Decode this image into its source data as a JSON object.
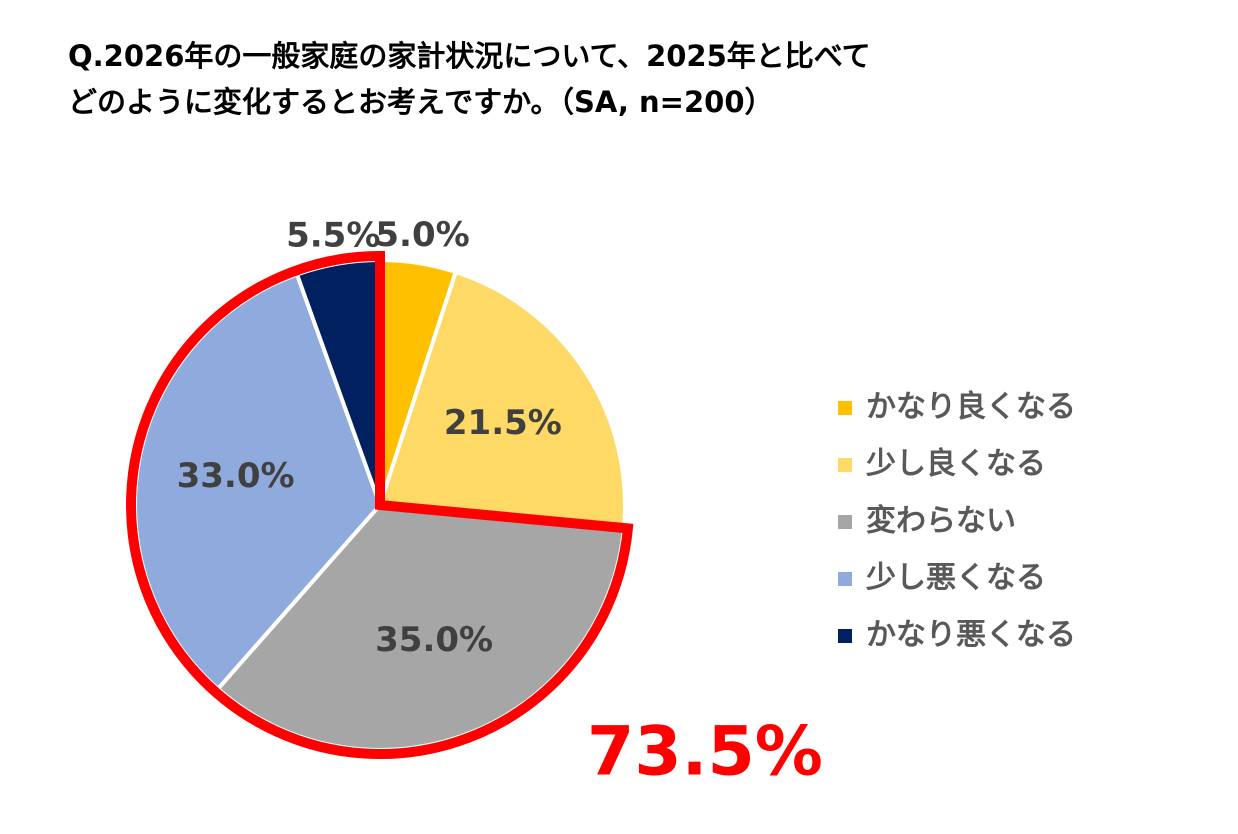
{
  "chart_data": {
    "type": "pie",
    "title": [
      "Q.2026年の一般家庭の家計状況について、2025年と比べて",
      "どのように変化するとお考えですか。（SA, n=200）"
    ],
    "categories": [
      "かなり良くなる",
      "少し良くなる",
      "変わらない",
      "少し悪くなる",
      "かなり悪くなる"
    ],
    "values": [
      5.0,
      21.5,
      35.0,
      33.0,
      5.5
    ],
    "value_labels": [
      "5.0%",
      "21.5%",
      "35.0%",
      "33.0%",
      "5.5%"
    ],
    "colors": [
      "#ffc000",
      "#ffd966",
      "#a6a6a6",
      "#8faadc",
      "#002060"
    ],
    "annotation": {
      "value": 73.5,
      "label": "73.5%",
      "color": "#ff0000"
    },
    "legend": "right"
  }
}
